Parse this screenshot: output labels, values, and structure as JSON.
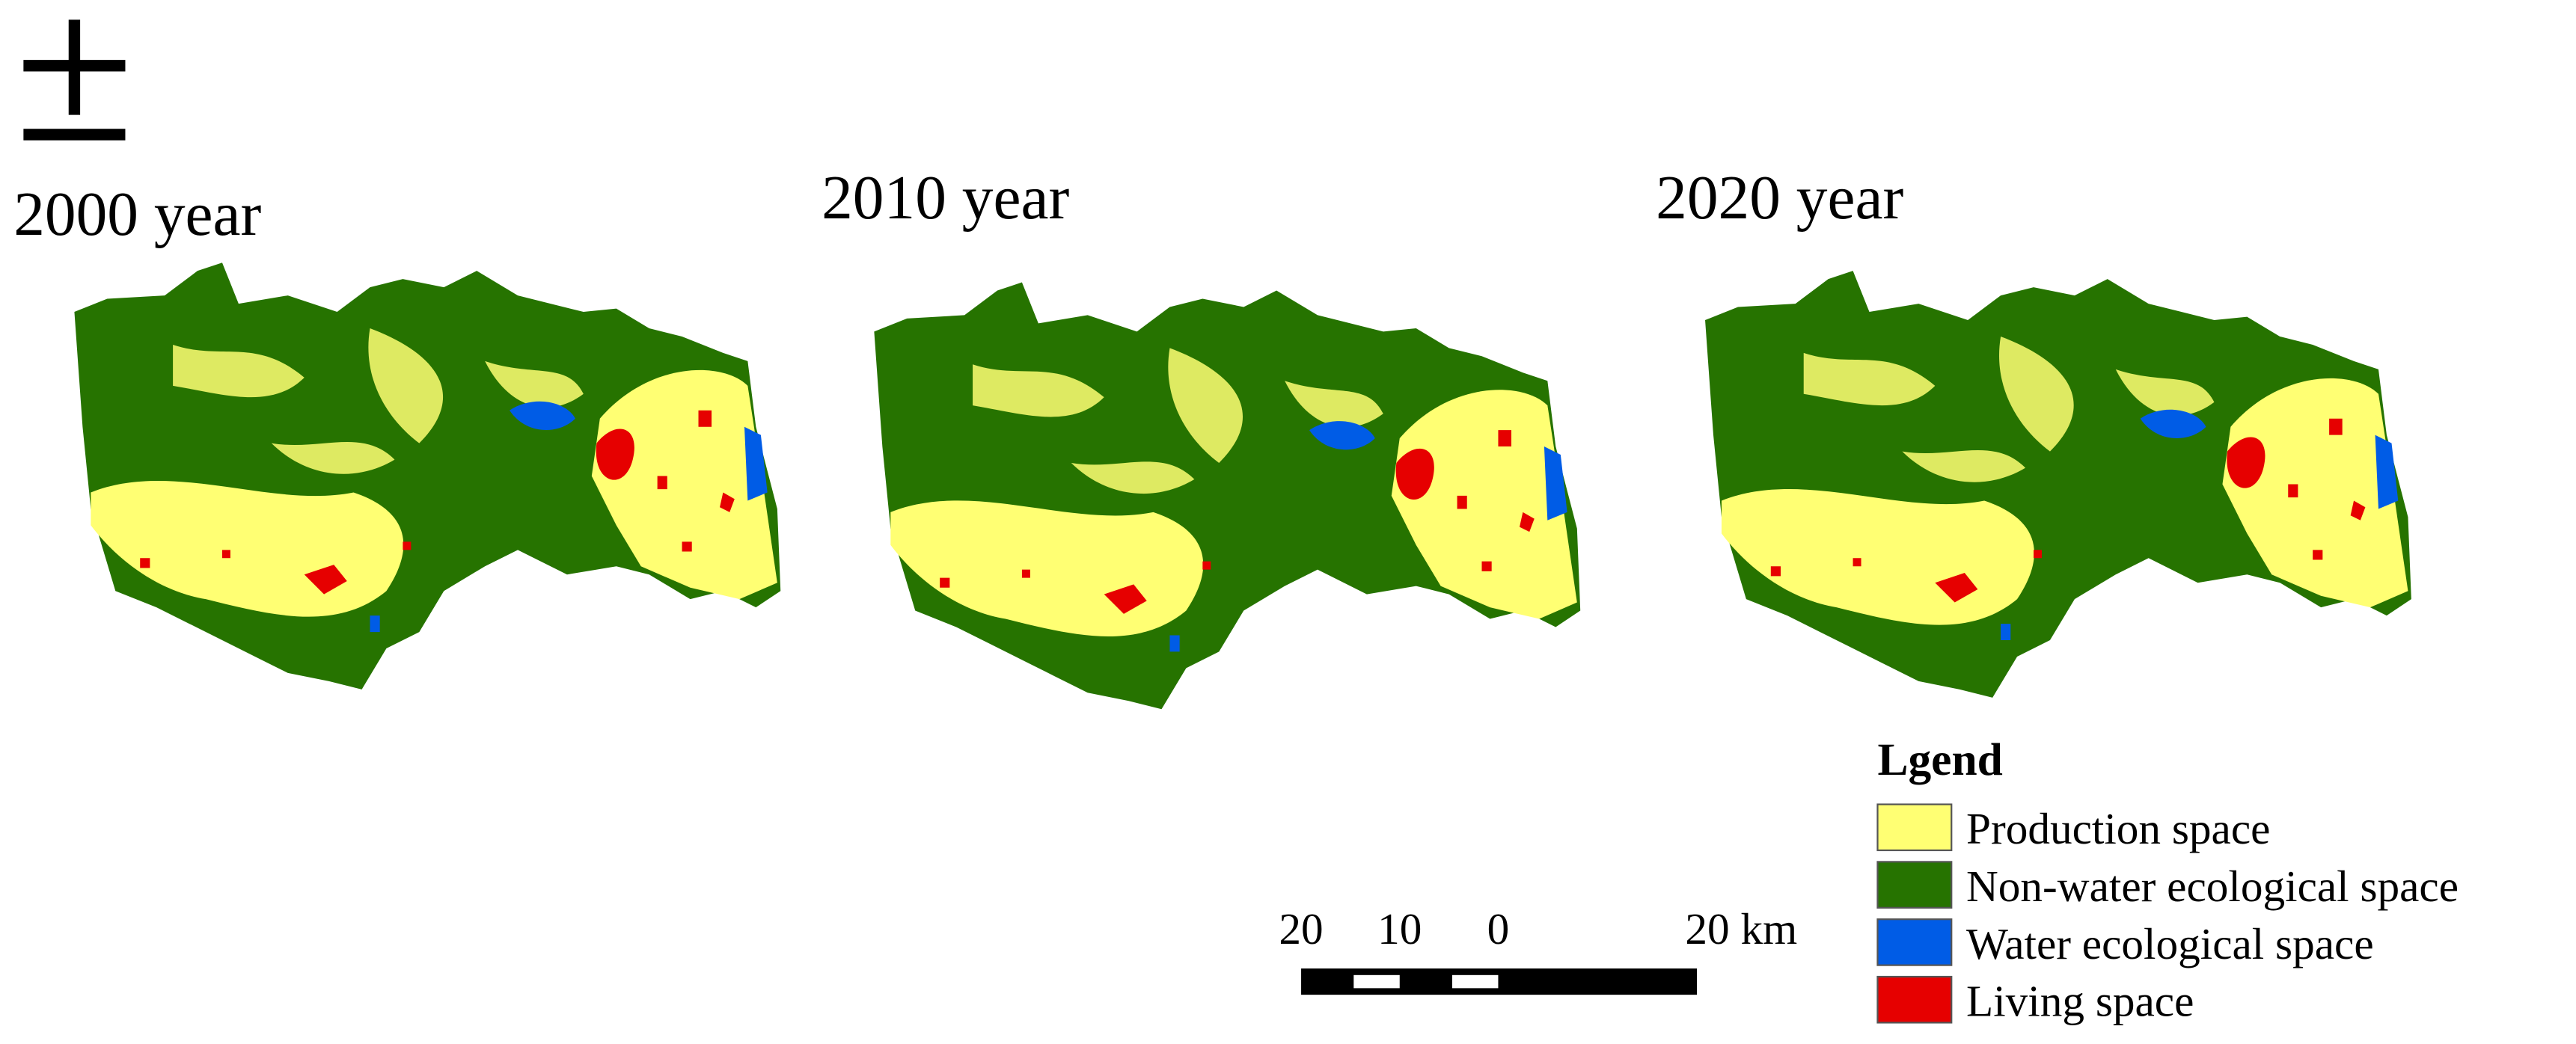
{
  "panels": [
    {
      "title": "2000 year"
    },
    {
      "title": "2010 year"
    },
    {
      "title": "2020 year"
    }
  ],
  "scale_bar": {
    "labels": [
      "20",
      "10",
      "0",
      "20 km"
    ]
  },
  "legend": {
    "title": "Lgend",
    "items": [
      {
        "label": "Production space",
        "color": "#ffff73"
      },
      {
        "label": "Non-water ecological space",
        "color": "#267300"
      },
      {
        "label": "Water ecological space",
        "color": "#005ce6"
      },
      {
        "label": "Living space",
        "color": "#e60000"
      }
    ]
  }
}
